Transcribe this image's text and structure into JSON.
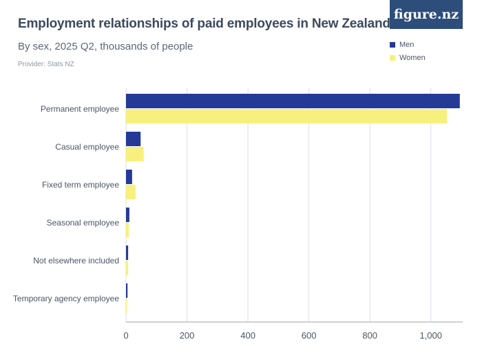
{
  "title": "Employment relationships of paid employees in New Zealand",
  "subtitle": "By sex, 2025 Q2, thousands of people",
  "provider": "Provider: Stats NZ",
  "logo": "figure.nz",
  "colors": {
    "men": "#243a96",
    "women": "#f8f07e",
    "grid": "#d9dde3",
    "axis": "#4a5566"
  },
  "chart_data": {
    "type": "bar",
    "orientation": "horizontal",
    "categories": [
      "Permanent employee",
      "Casual employee",
      "Fixed term employee",
      "Seasonal employee",
      "Not elsewhere included",
      "Temporary agency employee"
    ],
    "series": [
      {
        "name": "Men",
        "values": [
          1095,
          48,
          20,
          11,
          7,
          5
        ]
      },
      {
        "name": "Women",
        "values": [
          1053,
          58,
          31,
          9,
          7,
          3
        ]
      }
    ],
    "xlim": [
      0,
      1100
    ],
    "xticks": [
      0,
      200,
      400,
      600,
      800,
      1000
    ],
    "xtick_labels": [
      "0",
      "200",
      "400",
      "600",
      "800",
      "1,000"
    ],
    "grid": true,
    "legend_position": "top-right"
  }
}
